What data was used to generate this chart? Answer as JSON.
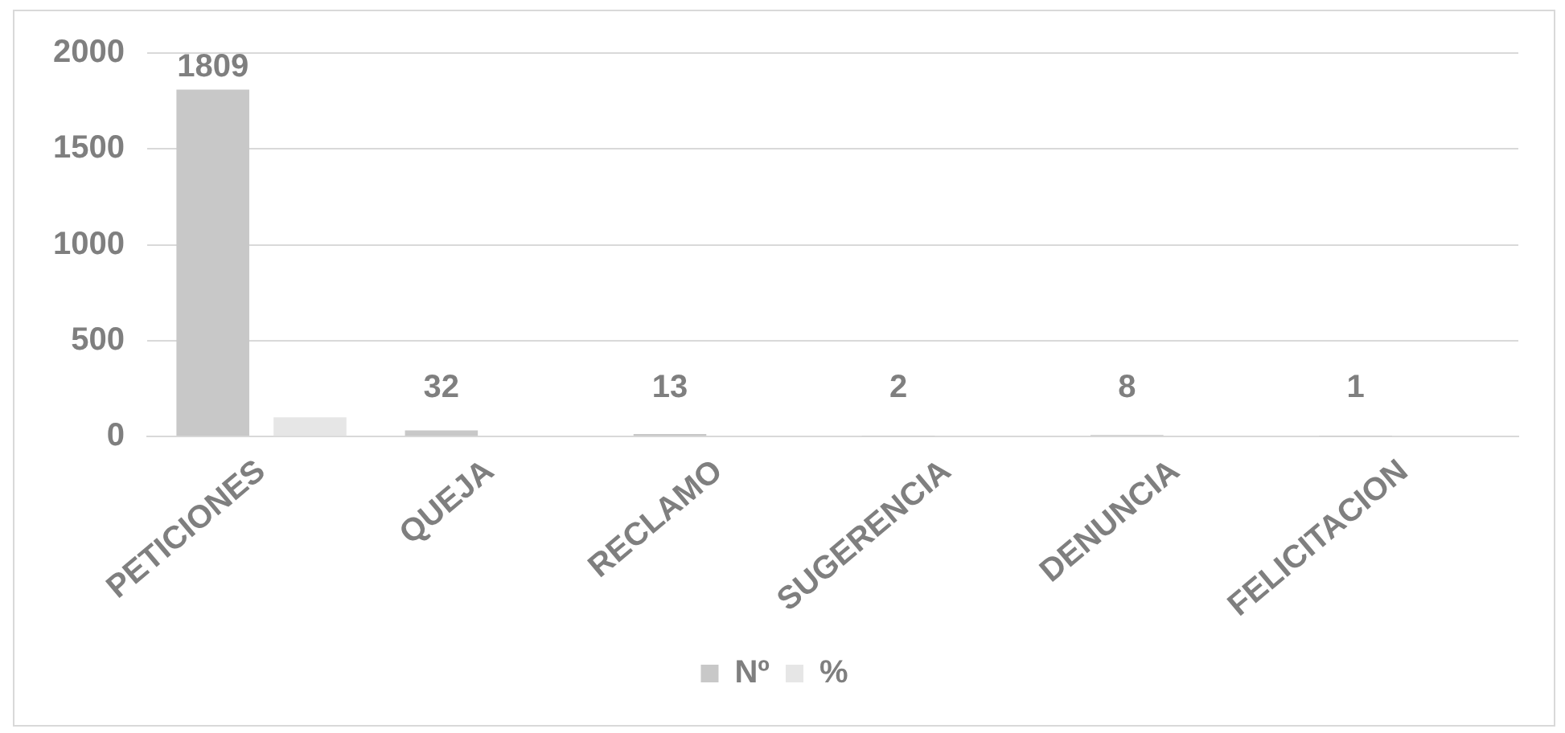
{
  "chart_data": {
    "type": "bar",
    "categories": [
      "PETICIONES",
      "QUEJA",
      "RECLAMO",
      "SUGERENCIA",
      "DENUNCIA",
      "FELICITACION"
    ],
    "series": [
      {
        "name": "Nº",
        "color": "#c8c8c8",
        "values": [
          1809,
          32,
          13,
          2,
          8,
          1
        ],
        "value_labels": [
          "1809",
          "32",
          "13",
          "2",
          "8",
          "1"
        ]
      },
      {
        "name": "%",
        "color": "#e6e6e6",
        "values": [
          100,
          0,
          0,
          0,
          0,
          0
        ]
      }
    ],
    "ylim": [
      0,
      2000
    ],
    "yticks": [
      0,
      500,
      1000,
      1500,
      2000
    ],
    "grid": "y",
    "legend": "bottom"
  }
}
